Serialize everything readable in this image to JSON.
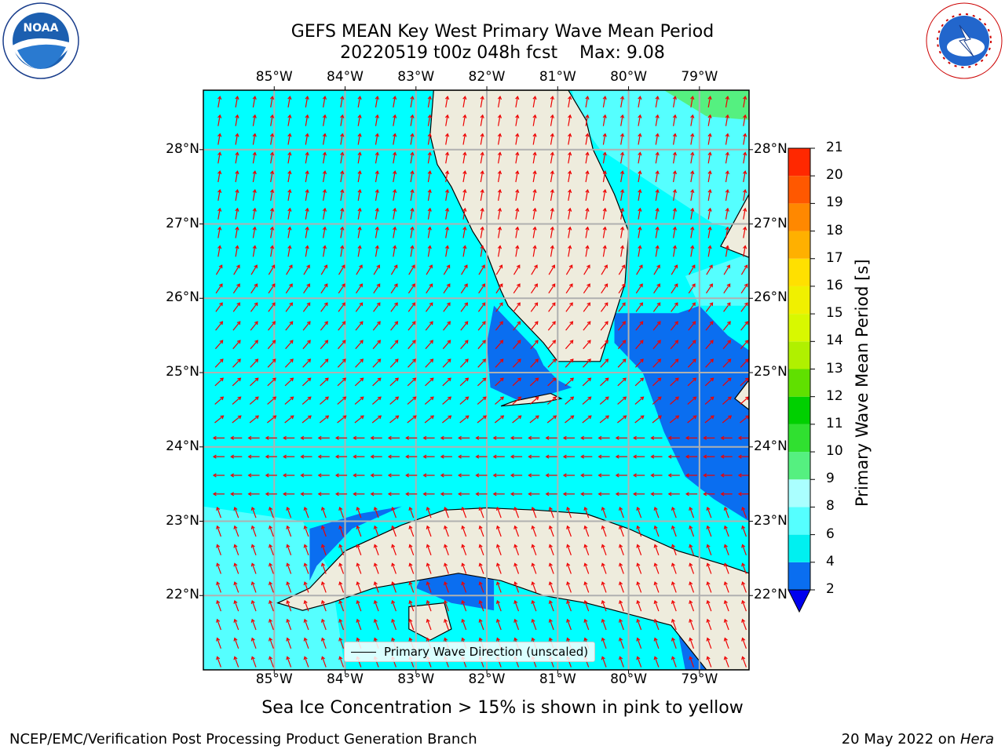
{
  "title": {
    "line1": "GEFS MEAN Key West Primary Wave Mean Period",
    "line2": "20220519 t00z 048h fcst    Max: 9.08"
  },
  "map": {
    "lon_ticks": [
      "85°W",
      "84°W",
      "83°W",
      "82°W",
      "81°W",
      "80°W",
      "79°W"
    ],
    "lat_ticks": [
      "28°N",
      "27°N",
      "26°N",
      "25°N",
      "24°N",
      "23°N",
      "22°N"
    ],
    "extent": {
      "lon_min": -86.0,
      "lon_max": -78.3,
      "lat_min": 21.0,
      "lat_max": 28.8
    },
    "legend_label": "Primary Wave Direction (unscaled)"
  },
  "colorbar": {
    "label": "Primary Wave Mean Period [s]",
    "ticks": [
      "2",
      "4",
      "6",
      "8",
      "9",
      "10",
      "11",
      "12",
      "13",
      "14",
      "15",
      "16",
      "17",
      "18",
      "19",
      "20",
      "21"
    ],
    "bounds": [
      2,
      4,
      6,
      8,
      9,
      10,
      11,
      12,
      13,
      14,
      15,
      16,
      17,
      18,
      19,
      20,
      21
    ],
    "colors": [
      "#0a6ef0",
      "#00f0f0",
      "#55ffff",
      "#aaffff",
      "#55f080",
      "#30e030",
      "#00d000",
      "#60e000",
      "#b0f000",
      "#d8f800",
      "#f0f000",
      "#ffe000",
      "#ffb000",
      "#ff8800",
      "#ff5800",
      "#ff2800",
      "#ff0000"
    ],
    "extend_color": "#0000ee"
  },
  "caption": "Sea Ice Concentration > 15% is shown in pink to yellow",
  "footer": {
    "left": "NCEP/EMC/Verification Post Processing Product Generation Branch",
    "right_prefix": "20 May 2022 on ",
    "right_host": "Hera"
  },
  "colors": {
    "land": "#eeecdd",
    "sea_default": "#00ffff",
    "sea_light": "#55ffff",
    "sea_short": "#0a6ef0",
    "arrow": "#ee0000",
    "grid": "#b0b0b0"
  },
  "logos": {
    "left": "NOAA",
    "left_ring": "NATIONAL OCEANIC AND ATMOSPHERIC ADMINISTRATION · U.S. DEPARTMENT OF COMMERCE",
    "right_ring": "NATIONAL WEATHER SERVICE"
  }
}
